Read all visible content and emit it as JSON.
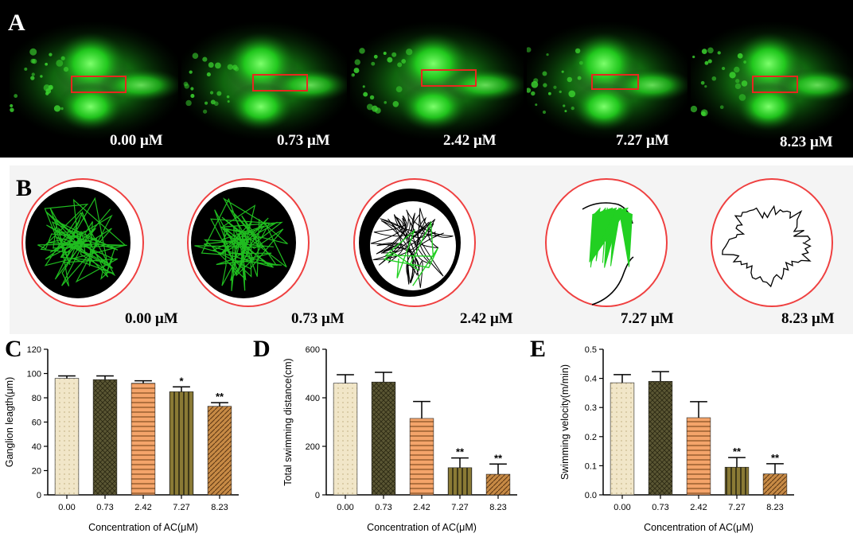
{
  "panel_letters": {
    "a": "A",
    "b": "B",
    "c": "C",
    "d": "D",
    "e": "E"
  },
  "panelA": {
    "labels": [
      "0.00 μM",
      "0.73 μM",
      "2.42 μM",
      "7.27 μM",
      "8.23 μM"
    ],
    "box_color": "#e8271e",
    "fluorescence_color": "#23d81f"
  },
  "panelB": {
    "labels": [
      "0.00 μM",
      "0.73 μM",
      "2.42 μM",
      "7.27 μM",
      "8.23 μM"
    ],
    "dish_color": "#ef4040",
    "track_colors": [
      "#000000",
      "#22d022"
    ]
  },
  "chart_data": [
    {
      "type": "bar",
      "panel": "C",
      "categories": [
        "0.00",
        "0.73",
        "2.42",
        "7.27",
        "8.23"
      ],
      "values": [
        96,
        95,
        92,
        85,
        73
      ],
      "errors": [
        2,
        3,
        2,
        4,
        3
      ],
      "significance": [
        "",
        "",
        "",
        "*",
        "**"
      ],
      "xlabel": "Concentration of AC(μM)",
      "ylabel": "Ganglion leagth(μm)",
      "ylim": [
        0,
        120
      ],
      "yticks": [
        0,
        20,
        40,
        60,
        80,
        100,
        120
      ],
      "colors": [
        "#f1e6c8",
        "#5a5633",
        "#f4a46a",
        "#8a7a35",
        "#c78a45"
      ]
    },
    {
      "type": "bar",
      "panel": "D",
      "categories": [
        "0.00",
        "0.73",
        "2.42",
        "7.27",
        "8.23"
      ],
      "values": [
        460,
        465,
        315,
        112,
        85
      ],
      "errors": [
        35,
        40,
        70,
        40,
        42
      ],
      "significance": [
        "",
        "",
        "",
        "**",
        "**"
      ],
      "xlabel": "Concentration of AC(μM)",
      "ylabel": "Total swimming distance(cm)",
      "ylim": [
        0,
        600
      ],
      "yticks": [
        0,
        200,
        400,
        600
      ],
      "colors": [
        "#f1e6c8",
        "#5a5633",
        "#f4a46a",
        "#8a7a35",
        "#c78a45"
      ]
    },
    {
      "type": "bar",
      "panel": "E",
      "categories": [
        "0.00",
        "0.73",
        "2.42",
        "7.27",
        "8.23"
      ],
      "values": [
        0.385,
        0.39,
        0.265,
        0.095,
        0.072
      ],
      "errors": [
        0.028,
        0.033,
        0.055,
        0.033,
        0.035
      ],
      "significance": [
        "",
        "",
        "",
        "**",
        "**"
      ],
      "xlabel": "Concentration of AC(μM)",
      "ylabel": "Swimming velocity(m/min)",
      "ylim": [
        0,
        0.5
      ],
      "yticks": [
        0.0,
        0.1,
        0.2,
        0.3,
        0.4,
        0.5
      ],
      "ytick_labels": [
        "0.0",
        "0.1",
        "0.2",
        "0.3",
        "0.4",
        "0.5"
      ],
      "colors": [
        "#f1e6c8",
        "#5a5633",
        "#f4a46a",
        "#8a7a35",
        "#c78a45"
      ]
    }
  ]
}
